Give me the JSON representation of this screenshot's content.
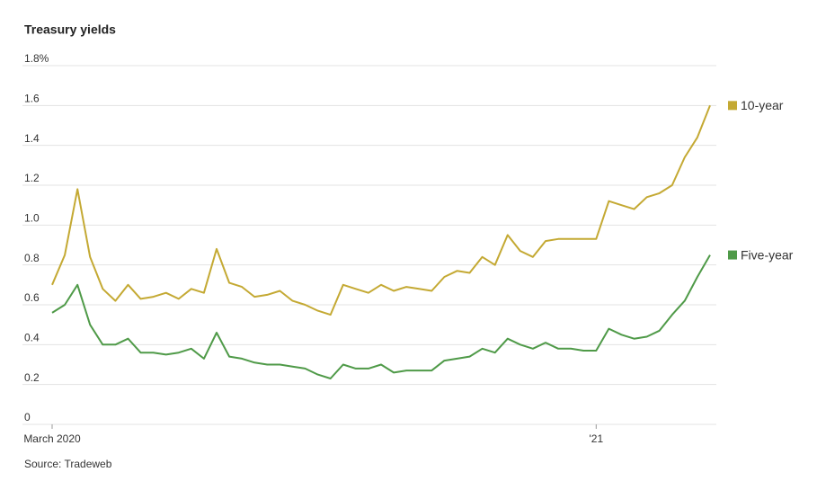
{
  "chart_data": {
    "type": "line",
    "title": "Treasury yields",
    "source": "Source: Tradeweb",
    "categories": [
      "March 2020",
      null,
      null,
      null,
      null,
      null,
      null,
      null,
      null,
      null,
      null,
      null,
      null,
      null,
      null,
      null,
      null,
      null,
      null,
      null,
      null,
      null,
      null,
      null,
      null,
      null,
      null,
      null,
      null,
      null,
      null,
      null,
      null,
      null,
      null,
      null,
      null,
      null,
      null,
      null,
      null,
      null,
      null,
      "'21",
      null,
      null,
      null,
      null,
      null,
      null,
      null,
      null,
      null
    ],
    "series": [
      {
        "name": "10-year",
        "color": "#c4a933",
        "values": [
          0.7,
          0.85,
          1.18,
          0.84,
          0.68,
          0.62,
          0.7,
          0.63,
          0.64,
          0.66,
          0.63,
          0.68,
          0.66,
          0.88,
          0.71,
          0.69,
          0.64,
          0.65,
          0.67,
          0.62,
          0.6,
          0.57,
          0.55,
          0.7,
          0.68,
          0.66,
          0.7,
          0.67,
          0.69,
          0.68,
          0.67,
          0.74,
          0.77,
          0.76,
          0.84,
          0.8,
          0.95,
          0.87,
          0.84,
          0.92,
          0.93,
          0.93,
          0.93,
          0.93,
          1.12,
          1.1,
          1.08,
          1.14,
          1.16,
          1.2,
          1.34,
          1.44,
          1.6
        ]
      },
      {
        "name": "Five-year",
        "color": "#4f9a48",
        "values": [
          0.56,
          0.6,
          0.7,
          0.5,
          0.4,
          0.4,
          0.43,
          0.36,
          0.36,
          0.35,
          0.36,
          0.38,
          0.33,
          0.46,
          0.34,
          0.33,
          0.31,
          0.3,
          0.3,
          0.29,
          0.28,
          0.25,
          0.23,
          0.3,
          0.28,
          0.28,
          0.3,
          0.26,
          0.27,
          0.27,
          0.27,
          0.32,
          0.33,
          0.34,
          0.38,
          0.36,
          0.43,
          0.4,
          0.38,
          0.41,
          0.38,
          0.38,
          0.37,
          0.37,
          0.48,
          0.45,
          0.43,
          0.44,
          0.47,
          0.55,
          0.62,
          0.74,
          0.85
        ]
      }
    ],
    "ylim": [
      0,
      1.8
    ],
    "yticks": [
      0,
      0.2,
      0.4,
      0.6,
      0.8,
      {
        "value": 1,
        "label": "1.0"
      },
      1.2,
      1.4,
      1.6,
      {
        "value": 1.8,
        "label": "1.8%"
      }
    ],
    "grid": true
  }
}
